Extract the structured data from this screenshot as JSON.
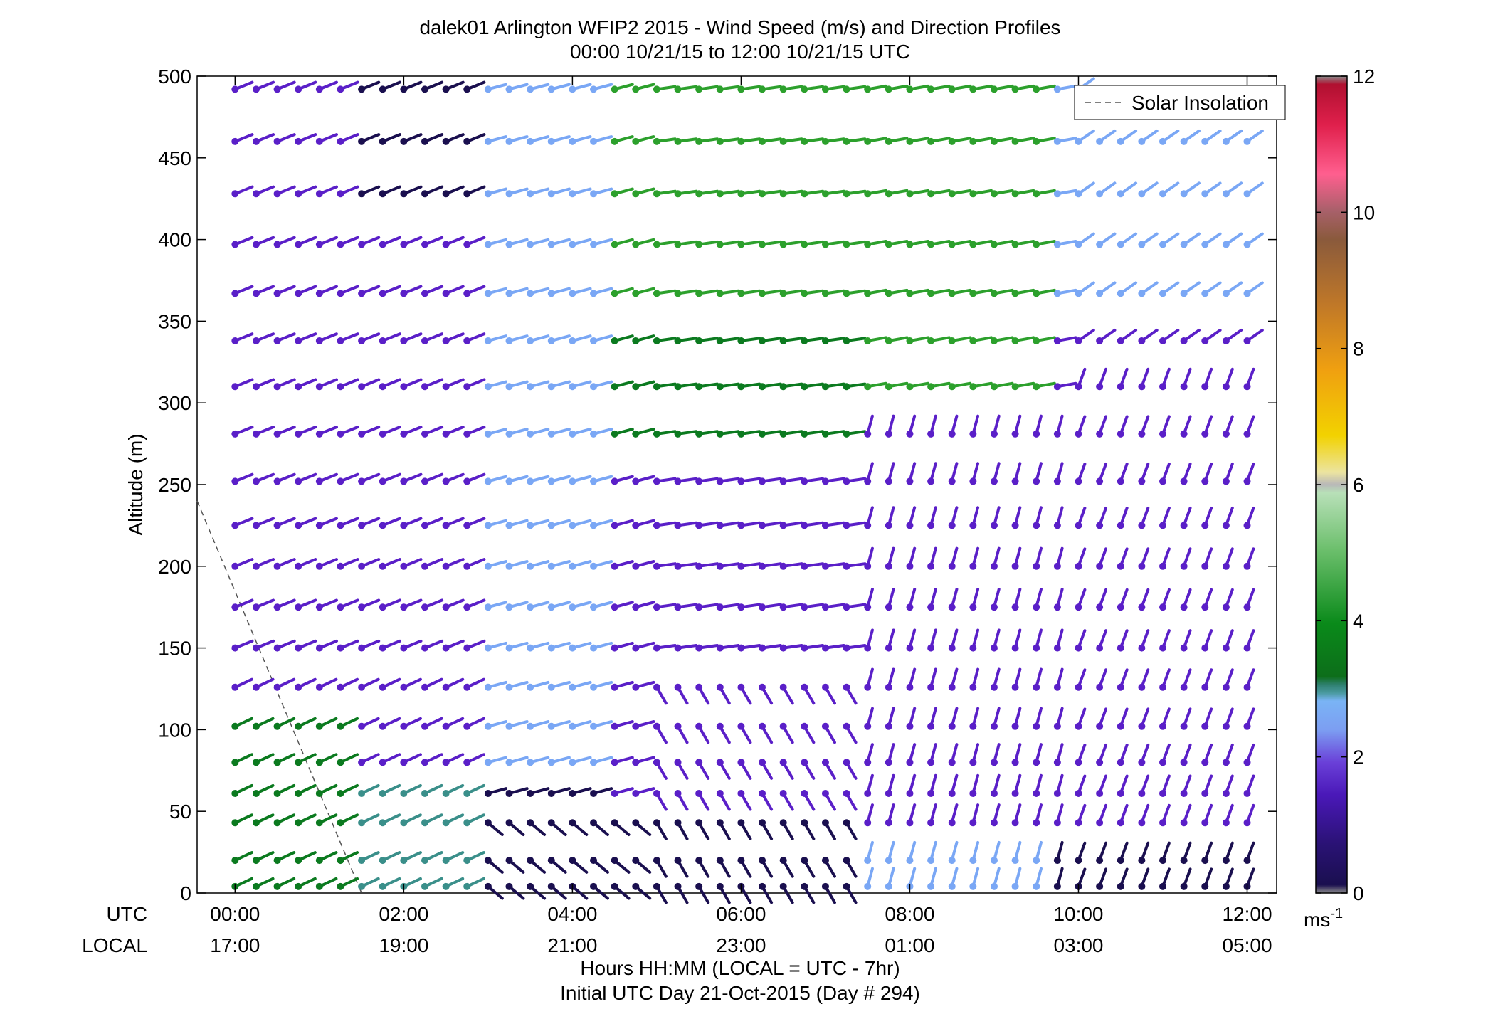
{
  "chart_data": {
    "type": "wind-barb-profile",
    "title_line1": "dalek01 Arlington WFIP2 2015 - Wind Speed (m/s) and Direction Profiles",
    "title_line2": "00:00 10/21/15 to 12:00 10/21/15  UTC",
    "ylabel": "Altitude (m)",
    "ylim": [
      0,
      500
    ],
    "yticks": [
      "0",
      "50",
      "100",
      "150",
      "200",
      "250",
      "300",
      "350",
      "400",
      "450",
      "500"
    ],
    "xlim_hours": [
      -0.45,
      12.35
    ],
    "utc_row_label": "UTC",
    "local_row_label": "LOCAL",
    "utc_ticks": [
      "00:00",
      "02:00",
      "04:00",
      "06:00",
      "08:00",
      "10:00",
      "12:00"
    ],
    "local_ticks": [
      "17:00",
      "19:00",
      "21:00",
      "23:00",
      "01:00",
      "03:00",
      "05:00"
    ],
    "xlabel_line1": "Hours HH:MM  (LOCAL = UTC - 7hr)",
    "xlabel_line2": "Initial UTC Day 21-Oct-2015 (Day # 294)",
    "legend": {
      "label": "Solar Insolation",
      "position": "top-right"
    },
    "solar_insolation": {
      "x_hours": [
        -0.45,
        1.5
      ],
      "y_altitude": [
        240,
        0
      ]
    },
    "colorbar": {
      "min": 0,
      "max": 12,
      "ticks": [
        "0",
        "2",
        "4",
        "6",
        "8",
        "10",
        "12"
      ],
      "unit_main": "ms",
      "unit_sup": "-1"
    },
    "altitudes": [
      4,
      20,
      43,
      61,
      80,
      102,
      126,
      150,
      175,
      200,
      225,
      252,
      281,
      310,
      338,
      367,
      397,
      428,
      460,
      492
    ],
    "time_start_hours": 0.0,
    "time_step_hours": 0.25,
    "time_count": 49
  },
  "colors": {
    "dark_navy": "#1a0f4f",
    "purple": "#5a1fc8",
    "light_blue": "#7aa7f5",
    "teal": "#3a8f8a",
    "dark_green": "#0b7a1f",
    "green": "#2ca02c"
  }
}
